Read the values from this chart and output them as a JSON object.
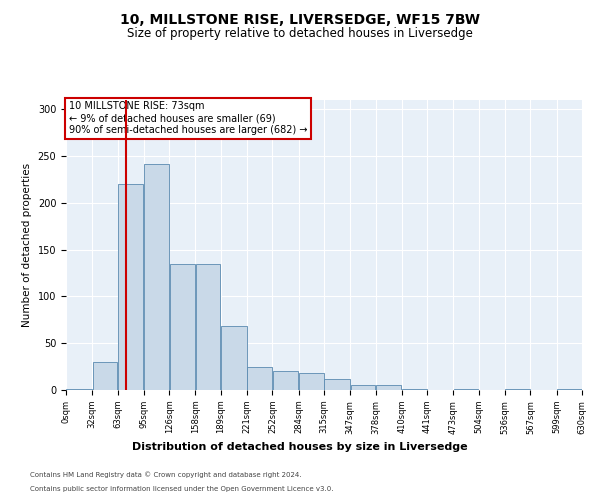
{
  "title1": "10, MILLSTONE RISE, LIVERSEDGE, WF15 7BW",
  "title2": "Size of property relative to detached houses in Liversedge",
  "xlabel": "Distribution of detached houses by size in Liversedge",
  "ylabel": "Number of detached properties",
  "annotation_line1": "10 MILLSTONE RISE: 73sqm",
  "annotation_line2": "← 9% of detached houses are smaller (69)",
  "annotation_line3": "90% of semi-detached houses are larger (682) →",
  "footer1": "Contains HM Land Registry data © Crown copyright and database right 2024.",
  "footer2": "Contains public sector information licensed under the Open Government Licence v3.0.",
  "property_sqm": 73,
  "bin_edges": [
    0,
    32,
    63,
    95,
    126,
    158,
    189,
    221,
    252,
    284,
    315,
    347,
    378,
    410,
    441,
    473,
    504,
    536,
    567,
    599,
    630
  ],
  "bar_heights": [
    1,
    30,
    220,
    242,
    135,
    135,
    68,
    25,
    20,
    18,
    12,
    5,
    5,
    1,
    0,
    1,
    0,
    1,
    0,
    1
  ],
  "bar_color": "#c9d9e8",
  "bar_edge_color": "#5a8ab0",
  "line_color": "#cc0000",
  "box_edge_color": "#cc0000",
  "background_color": "#e8f0f8",
  "ylim": [
    0,
    310
  ],
  "yticks": [
    0,
    50,
    100,
    150,
    200,
    250,
    300
  ],
  "title1_fontsize": 10,
  "title2_fontsize": 8.5,
  "xlabel_fontsize": 8,
  "ylabel_fontsize": 7.5,
  "annot_fontsize": 7,
  "tick_fontsize": 6,
  "footer_fontsize": 5
}
